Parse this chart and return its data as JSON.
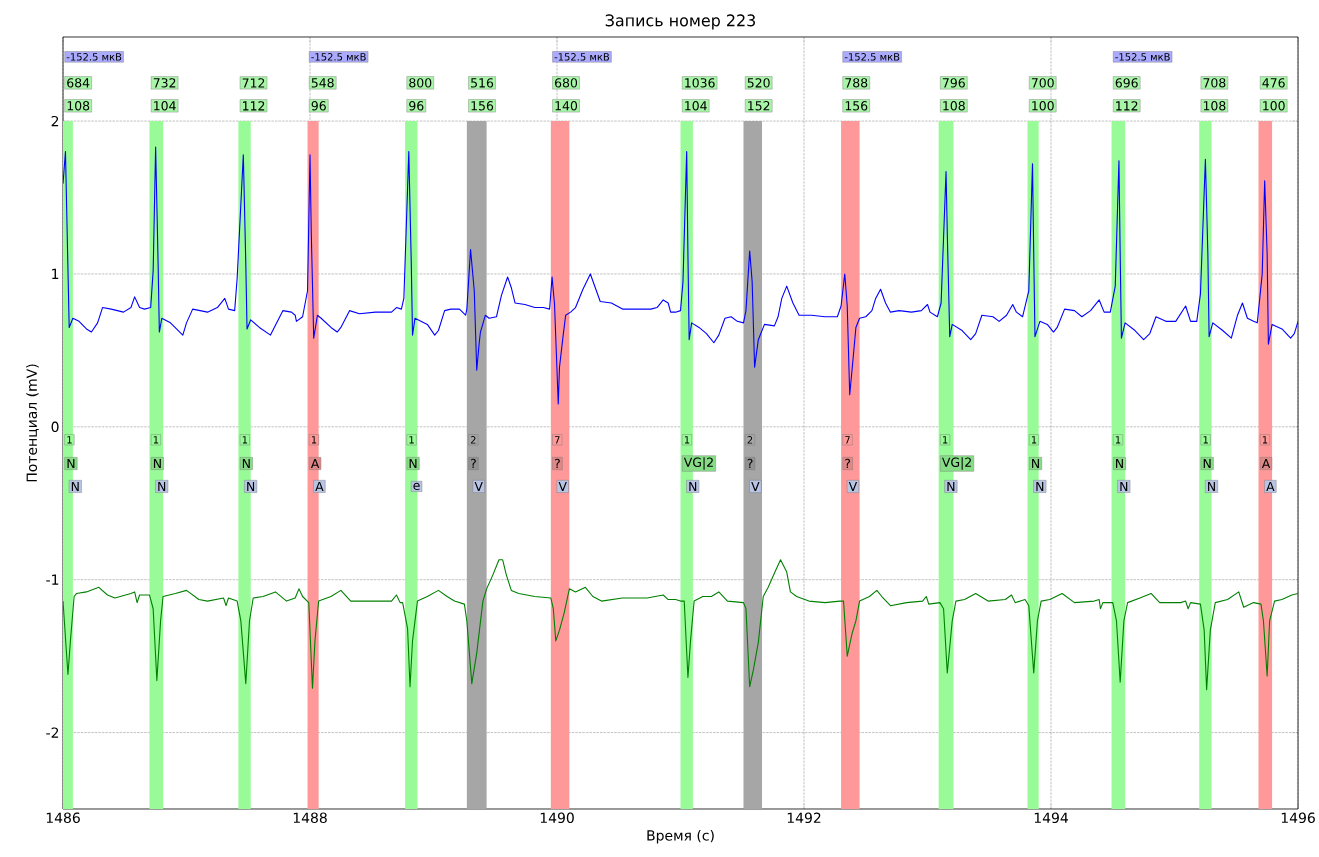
{
  "chart_data": {
    "type": "line",
    "title": "Запись номер 223",
    "xlabel": "Время (с)",
    "ylabel": "Потенциал (mV)",
    "xlim": [
      1486,
      1496
    ],
    "ylim": [
      -2.5,
      2.55
    ],
    "xticks": [
      1486,
      1488,
      1490,
      1492,
      1494,
      1496
    ],
    "yticks": [
      -2,
      -1,
      0,
      1,
      2
    ],
    "grid": true,
    "series": [
      {
        "color": "#0000ff",
        "x": [
          1486.0,
          1486.02,
          1486.05,
          1486.08,
          1486.13,
          1486.19,
          1486.23,
          1486.28,
          1486.32,
          1486.39,
          1486.49,
          1486.55,
          1486.58,
          1486.62,
          1486.66,
          1486.71,
          1486.73,
          1486.75,
          1486.77,
          1486.78,
          1486.8,
          1486.87,
          1486.97,
          1487.0,
          1487.05,
          1487.17,
          1487.25,
          1487.31,
          1487.34,
          1487.39,
          1487.41,
          1487.46,
          1487.48,
          1487.49,
          1487.52,
          1487.59,
          1487.68,
          1487.73,
          1487.78,
          1487.85,
          1487.88,
          1487.89,
          1487.94,
          1487.98,
          1488.0,
          1488.01,
          1488.03,
          1488.06,
          1488.09,
          1488.17,
          1488.22,
          1488.25,
          1488.32,
          1488.4,
          1488.53,
          1488.66,
          1488.7,
          1488.74,
          1488.76,
          1488.8,
          1488.82,
          1488.83,
          1488.85,
          1488.95,
          1489.01,
          1489.04,
          1489.09,
          1489.14,
          1489.21,
          1489.26,
          1489.27,
          1489.3,
          1489.33,
          1489.35,
          1489.37,
          1489.38,
          1489.42,
          1489.45,
          1489.51,
          1489.55,
          1489.6,
          1489.63,
          1489.66,
          1489.74,
          1489.82,
          1489.89,
          1489.94,
          1489.96,
          1489.98,
          1490.01,
          1490.02,
          1490.05,
          1490.07,
          1490.11,
          1490.15,
          1490.21,
          1490.27,
          1490.31,
          1490.35,
          1490.44,
          1490.53,
          1490.66,
          1490.76,
          1490.81,
          1490.86,
          1490.9,
          1490.92,
          1490.96,
          1491.0,
          1491.02,
          1491.05,
          1491.06,
          1491.07,
          1491.09,
          1491.15,
          1491.21,
          1491.27,
          1491.31,
          1491.36,
          1491.41,
          1491.46,
          1491.51,
          1491.53,
          1491.56,
          1491.58,
          1491.6,
          1491.63,
          1491.68,
          1491.76,
          1491.79,
          1491.82,
          1491.86,
          1491.91,
          1491.96,
          1492.06,
          1492.17,
          1492.27,
          1492.3,
          1492.33,
          1492.35,
          1492.37,
          1492.4,
          1492.42,
          1492.45,
          1492.5,
          1492.55,
          1492.58,
          1492.62,
          1492.66,
          1492.7,
          1492.77,
          1492.87,
          1492.95,
          1493.0,
          1493.02,
          1493.08,
          1493.11,
          1493.15,
          1493.16,
          1493.18,
          1493.2,
          1493.28,
          1493.35,
          1493.39,
          1493.44,
          1493.53,
          1493.58,
          1493.64,
          1493.69,
          1493.72,
          1493.77,
          1493.82,
          1493.85,
          1493.86,
          1493.87,
          1493.91,
          1493.97,
          1494.02,
          1494.05,
          1494.11,
          1494.19,
          1494.25,
          1494.32,
          1494.39,
          1494.43,
          1494.48,
          1494.52,
          1494.55,
          1494.56,
          1494.57,
          1494.6,
          1494.68,
          1494.75,
          1494.8,
          1494.85,
          1494.93,
          1495.01,
          1495.09,
          1495.13,
          1495.18,
          1495.21,
          1495.25,
          1495.27,
          1495.28,
          1495.31,
          1495.39,
          1495.46,
          1495.51,
          1495.55,
          1495.59,
          1495.64,
          1495.67,
          1495.71,
          1495.73,
          1495.75,
          1495.76,
          1495.79,
          1495.87,
          1495.94,
          1495.97,
          1496.0
        ],
        "values": [
          1.59,
          1.8,
          0.65,
          0.71,
          0.69,
          0.64,
          0.62,
          0.68,
          0.78,
          0.77,
          0.75,
          0.78,
          0.85,
          0.78,
          0.77,
          0.78,
          1.02,
          1.83,
          1.07,
          0.62,
          0.71,
          0.68,
          0.6,
          0.68,
          0.77,
          0.75,
          0.78,
          0.84,
          0.77,
          0.76,
          0.97,
          1.78,
          1.07,
          0.64,
          0.7,
          0.65,
          0.6,
          0.68,
          0.76,
          0.75,
          0.73,
          0.69,
          0.72,
          0.89,
          1.78,
          1.28,
          0.58,
          0.73,
          0.71,
          0.65,
          0.62,
          0.65,
          0.76,
          0.74,
          0.75,
          0.75,
          0.78,
          0.77,
          0.84,
          1.8,
          1.07,
          0.6,
          0.71,
          0.67,
          0.6,
          0.63,
          0.76,
          0.77,
          0.77,
          0.73,
          0.77,
          1.16,
          0.89,
          0.37,
          0.55,
          0.62,
          0.73,
          0.71,
          0.72,
          0.86,
          0.98,
          0.91,
          0.81,
          0.8,
          0.78,
          0.78,
          0.77,
          0.98,
          0.8,
          0.15,
          0.39,
          0.6,
          0.73,
          0.75,
          0.78,
          0.9,
          1.0,
          0.91,
          0.82,
          0.81,
          0.77,
          0.77,
          0.77,
          0.78,
          0.83,
          0.81,
          0.75,
          0.75,
          0.76,
          0.95,
          1.8,
          1.13,
          0.57,
          0.68,
          0.65,
          0.61,
          0.55,
          0.6,
          0.71,
          0.72,
          0.69,
          0.68,
          0.76,
          1.15,
          0.95,
          0.39,
          0.57,
          0.67,
          0.66,
          0.72,
          0.84,
          0.92,
          0.81,
          0.73,
          0.73,
          0.72,
          0.72,
          0.79,
          1.0,
          0.79,
          0.21,
          0.47,
          0.65,
          0.71,
          0.72,
          0.76,
          0.84,
          0.9,
          0.81,
          0.75,
          0.76,
          0.75,
          0.76,
          0.8,
          0.75,
          0.72,
          0.81,
          1.67,
          1.27,
          0.59,
          0.67,
          0.63,
          0.57,
          0.61,
          0.73,
          0.72,
          0.69,
          0.73,
          0.8,
          0.75,
          0.72,
          0.89,
          1.72,
          1.13,
          0.59,
          0.69,
          0.67,
          0.62,
          0.65,
          0.77,
          0.76,
          0.72,
          0.76,
          0.83,
          0.75,
          0.75,
          0.92,
          1.74,
          1.13,
          0.58,
          0.68,
          0.63,
          0.57,
          0.61,
          0.72,
          0.69,
          0.69,
          0.79,
          0.69,
          0.69,
          0.87,
          1.75,
          1.13,
          0.59,
          0.68,
          0.63,
          0.58,
          0.73,
          0.81,
          0.71,
          0.69,
          0.68,
          1.0,
          1.61,
          1.13,
          0.54,
          0.67,
          0.64,
          0.58,
          0.61,
          0.69
        ]
      },
      {
        "color": "#008000",
        "x": [
          1486.0,
          1486.04,
          1486.06,
          1486.09,
          1486.11,
          1486.19,
          1486.29,
          1486.36,
          1486.42,
          1486.55,
          1486.58,
          1486.6,
          1486.62,
          1486.7,
          1486.73,
          1486.76,
          1486.79,
          1486.81,
          1486.91,
          1487.0,
          1487.1,
          1487.17,
          1487.3,
          1487.32,
          1487.34,
          1487.41,
          1487.44,
          1487.48,
          1487.51,
          1487.54,
          1487.62,
          1487.72,
          1487.81,
          1487.88,
          1487.91,
          1487.94,
          1487.99,
          1488.02,
          1488.04,
          1488.07,
          1488.17,
          1488.25,
          1488.33,
          1488.46,
          1488.66,
          1488.7,
          1488.73,
          1488.75,
          1488.79,
          1488.81,
          1488.83,
          1488.87,
          1488.95,
          1489.04,
          1489.11,
          1489.17,
          1489.25,
          1489.27,
          1489.31,
          1489.35,
          1489.4,
          1489.43,
          1489.48,
          1489.53,
          1489.56,
          1489.59,
          1489.63,
          1489.69,
          1489.82,
          1489.95,
          1489.97,
          1489.99,
          1490.02,
          1490.06,
          1490.1,
          1490.15,
          1490.23,
          1490.29,
          1490.36,
          1490.53,
          1490.73,
          1490.86,
          1490.9,
          1490.96,
          1491.0,
          1491.03,
          1491.06,
          1491.08,
          1491.11,
          1491.18,
          1491.25,
          1491.31,
          1491.38,
          1491.51,
          1491.53,
          1491.56,
          1491.59,
          1491.63,
          1491.67,
          1491.71,
          1491.77,
          1491.81,
          1491.86,
          1491.89,
          1491.94,
          1492.04,
          1492.17,
          1492.29,
          1492.32,
          1492.35,
          1492.39,
          1492.42,
          1492.45,
          1492.53,
          1492.59,
          1492.63,
          1492.7,
          1492.83,
          1492.96,
          1492.99,
          1493.01,
          1493.1,
          1493.13,
          1493.16,
          1493.2,
          1493.23,
          1493.3,
          1493.39,
          1493.49,
          1493.63,
          1493.68,
          1493.71,
          1493.79,
          1493.82,
          1493.86,
          1493.89,
          1493.92,
          1493.99,
          1494.09,
          1494.19,
          1494.35,
          1494.39,
          1494.4,
          1494.42,
          1494.5,
          1494.53,
          1494.56,
          1494.59,
          1494.62,
          1494.72,
          1494.81,
          1494.88,
          1495.05,
          1495.09,
          1495.11,
          1495.13,
          1495.21,
          1495.24,
          1495.26,
          1495.29,
          1495.33,
          1495.43,
          1495.52,
          1495.56,
          1495.64,
          1495.7,
          1495.72,
          1495.75,
          1495.77,
          1495.81,
          1495.87,
          1495.95,
          1496.0
        ],
        "values": [
          -1.14,
          -1.62,
          -1.4,
          -1.11,
          -1.09,
          -1.08,
          -1.05,
          -1.1,
          -1.12,
          -1.09,
          -1.08,
          -1.15,
          -1.1,
          -1.1,
          -1.19,
          -1.66,
          -1.27,
          -1.11,
          -1.09,
          -1.07,
          -1.13,
          -1.14,
          -1.12,
          -1.17,
          -1.12,
          -1.14,
          -1.27,
          -1.68,
          -1.27,
          -1.12,
          -1.11,
          -1.08,
          -1.14,
          -1.12,
          -1.06,
          -1.11,
          -1.15,
          -1.71,
          -1.4,
          -1.14,
          -1.11,
          -1.07,
          -1.14,
          -1.14,
          -1.14,
          -1.1,
          -1.15,
          -1.15,
          -1.32,
          -1.7,
          -1.4,
          -1.14,
          -1.11,
          -1.07,
          -1.11,
          -1.14,
          -1.16,
          -1.27,
          -1.68,
          -1.48,
          -1.14,
          -1.06,
          -0.97,
          -0.87,
          -0.87,
          -0.97,
          -1.07,
          -1.09,
          -1.11,
          -1.12,
          -1.19,
          -1.4,
          -1.33,
          -1.21,
          -1.06,
          -1.08,
          -1.05,
          -1.11,
          -1.14,
          -1.12,
          -1.12,
          -1.1,
          -1.13,
          -1.13,
          -1.14,
          -1.14,
          -1.64,
          -1.41,
          -1.14,
          -1.11,
          -1.11,
          -1.08,
          -1.14,
          -1.15,
          -1.19,
          -1.7,
          -1.59,
          -1.41,
          -1.11,
          -1.05,
          -0.94,
          -0.87,
          -0.95,
          -1.08,
          -1.11,
          -1.14,
          -1.15,
          -1.14,
          -1.14,
          -1.5,
          -1.35,
          -1.27,
          -1.14,
          -1.11,
          -1.07,
          -1.11,
          -1.17,
          -1.15,
          -1.14,
          -1.11,
          -1.16,
          -1.15,
          -1.19,
          -1.61,
          -1.27,
          -1.14,
          -1.13,
          -1.09,
          -1.14,
          -1.13,
          -1.1,
          -1.15,
          -1.13,
          -1.17,
          -1.61,
          -1.27,
          -1.14,
          -1.13,
          -1.09,
          -1.15,
          -1.14,
          -1.13,
          -1.19,
          -1.15,
          -1.15,
          -1.27,
          -1.67,
          -1.27,
          -1.15,
          -1.12,
          -1.09,
          -1.15,
          -1.15,
          -1.14,
          -1.19,
          -1.15,
          -1.16,
          -1.33,
          -1.72,
          -1.33,
          -1.15,
          -1.13,
          -1.08,
          -1.18,
          -1.15,
          -1.16,
          -1.27,
          -1.63,
          -1.27,
          -1.14,
          -1.13,
          -1.1,
          -1.09
        ]
      }
    ],
    "bands": [
      {
        "axis": "x",
        "from": 1486.0,
        "to": 1486.08,
        "color": "#98fb98"
      },
      {
        "axis": "x",
        "from": 1486.7,
        "to": 1486.81,
        "color": "#98fb98"
      },
      {
        "axis": "x",
        "from": 1487.42,
        "to": 1487.52,
        "color": "#98fb98"
      },
      {
        "axis": "x",
        "from": 1487.98,
        "to": 1488.07,
        "color": "#ff9999"
      },
      {
        "axis": "x",
        "from": 1488.77,
        "to": 1488.87,
        "color": "#98fb98"
      },
      {
        "axis": "x",
        "from": 1489.27,
        "to": 1489.43,
        "color": "#a6a6a6"
      },
      {
        "axis": "x",
        "from": 1489.95,
        "to": 1490.1,
        "color": "#ff9999"
      },
      {
        "axis": "x",
        "from": 1491.0,
        "to": 1491.1,
        "color": "#98fb98"
      },
      {
        "axis": "x",
        "from": 1491.51,
        "to": 1491.66,
        "color": "#a6a6a6"
      },
      {
        "axis": "x",
        "from": 1492.3,
        "to": 1492.45,
        "color": "#ff9999"
      },
      {
        "axis": "x",
        "from": 1493.09,
        "to": 1493.21,
        "color": "#98fb98"
      },
      {
        "axis": "x",
        "from": 1493.81,
        "to": 1493.9,
        "color": "#98fb98"
      },
      {
        "axis": "x",
        "from": 1494.49,
        "to": 1494.6,
        "color": "#98fb98"
      },
      {
        "axis": "x",
        "from": 1495.2,
        "to": 1495.3,
        "color": "#98fb98"
      },
      {
        "axis": "x",
        "from": 1495.68,
        "to": 1495.79,
        "color": "#ff9999"
      }
    ],
    "annotations": [
      "-152.5 мкВ",
      "-152.5 мкВ",
      "-152.5 мкВ",
      "-152.5 мкВ",
      "-152.5 мкВ",
      "684",
      "108",
      "1",
      "N",
      "N",
      "732",
      "104",
      "1",
      "N",
      "N",
      "712",
      "112",
      "1",
      "N",
      "N",
      "548",
      "96",
      "1",
      "A",
      "A",
      "800",
      "96",
      "1",
      "N",
      "e",
      "516",
      "156",
      "2",
      "?",
      "V",
      "680",
      "140",
      "7",
      "?",
      "V",
      "1036",
      "104",
      "1",
      "VG|2",
      "N",
      "520",
      "152",
      "2",
      "?",
      "V",
      "788",
      "156",
      "7",
      "?",
      "V",
      "796",
      "108",
      "1",
      "VG|2",
      "N",
      "700",
      "100",
      "1",
      "N",
      "N",
      "696",
      "112",
      "1",
      "N",
      "N",
      "708",
      "108",
      "1",
      "N",
      "N",
      "476",
      "100",
      "1",
      "A",
      "A"
    ]
  }
}
